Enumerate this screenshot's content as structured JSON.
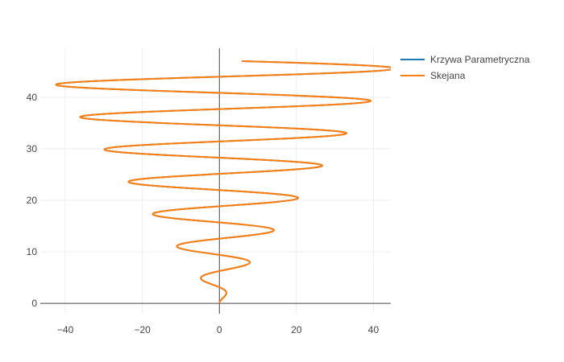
{
  "chart_data": {
    "type": "line",
    "title": "",
    "xlabel": "",
    "ylabel": "",
    "xlim": [
      -46.5,
      44.5
    ],
    "ylim": [
      -2,
      49.5
    ],
    "x_ticks": [
      -40,
      -20,
      0,
      20,
      40
    ],
    "y_ticks": [
      0,
      10,
      20,
      30,
      40
    ],
    "x_tick_labels": [
      "−40",
      "−20",
      "0",
      "20",
      "40"
    ],
    "y_tick_labels": [
      "0",
      "10",
      "20",
      "30",
      "40"
    ],
    "grid": true,
    "zero_lines": true,
    "legend_position": "top-right",
    "curve": {
      "description_of_shape": "parametric spiral: x = t*sin(t), y = t",
      "t_range": [
        0,
        47
      ],
      "samples": 1200
    },
    "series": [
      {
        "name": "Krzywa Parametryczna",
        "color": "#1f77b4",
        "width": 2
      },
      {
        "name": "Skejana",
        "color": "#ff7f0e",
        "width": 2
      }
    ]
  }
}
